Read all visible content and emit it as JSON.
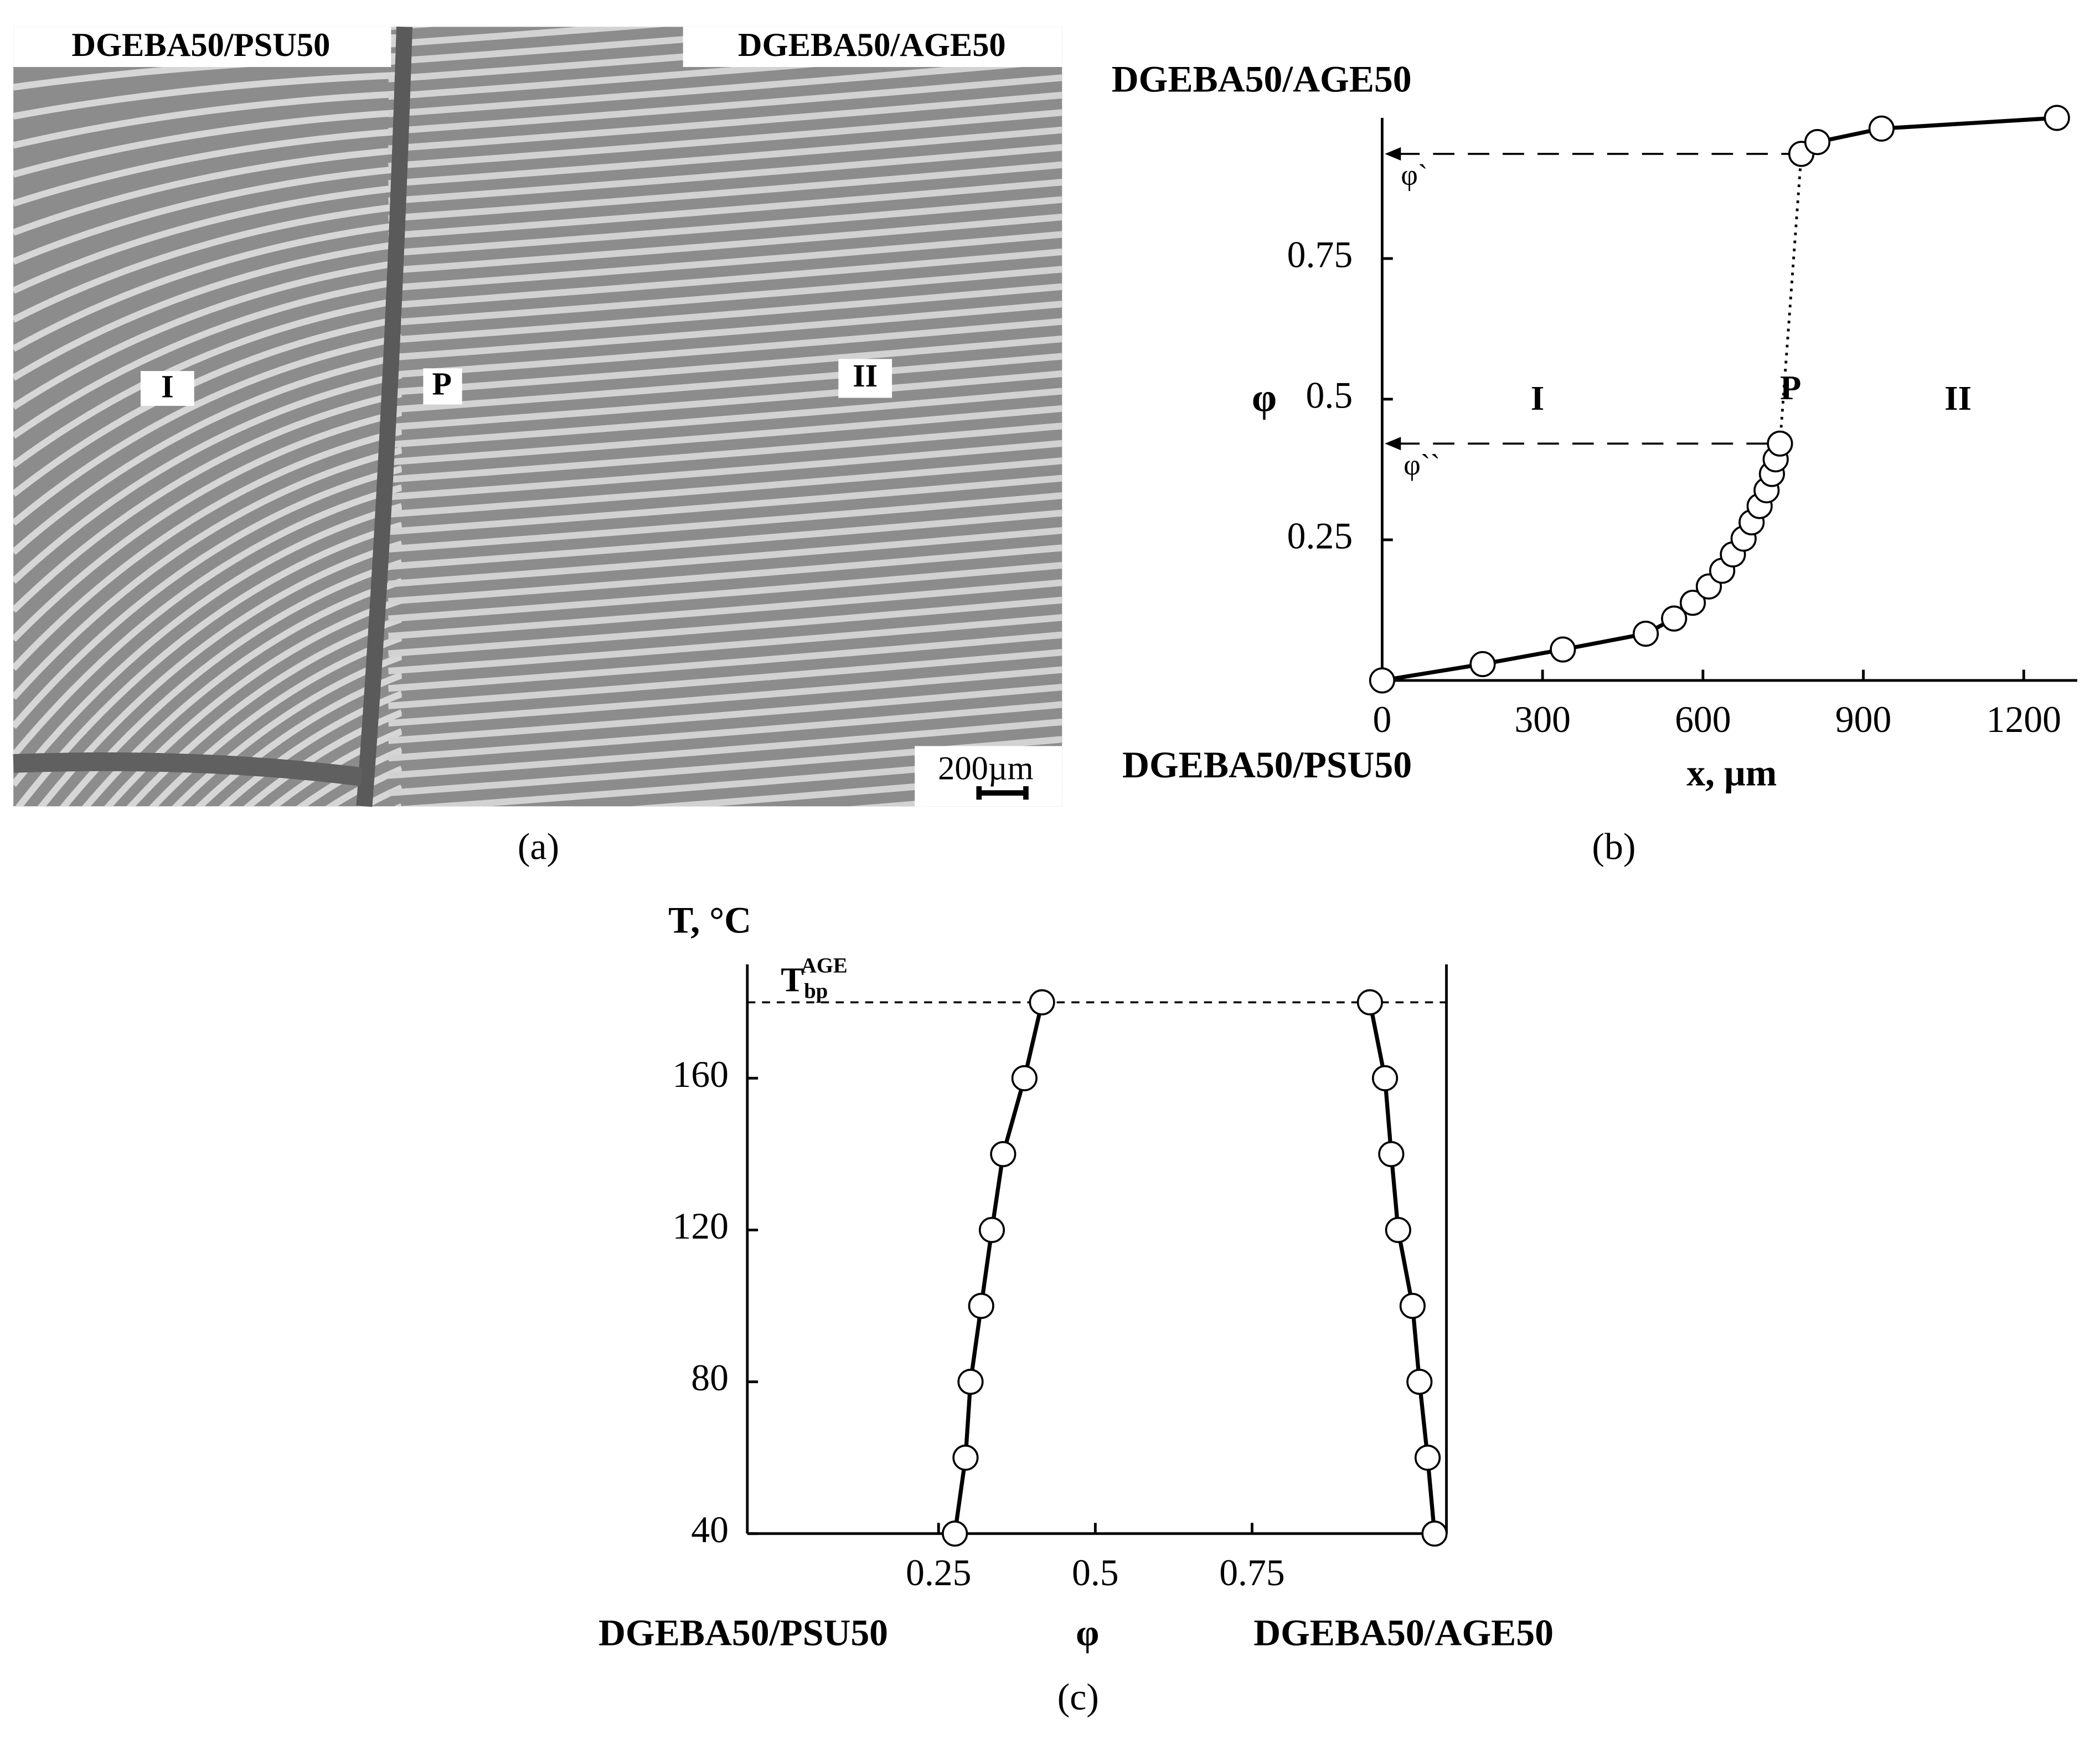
{
  "micrograph": {
    "label_left": "DGEBA50/PSU50",
    "label_right": "DGEBA50/AGE50",
    "regions": [
      "I",
      "P",
      "II"
    ],
    "scale_bar": "200µm",
    "caption": "(a)"
  },
  "chart_data": [
    {
      "type": "scatter",
      "top_label": "DGEBA50/AGE50",
      "bottom_label": "DGEBA50/PSU50",
      "ylabel": "φ",
      "xlabel": "x, µm",
      "regions": [
        "I",
        "P",
        "II"
      ],
      "level_labels": [
        "φ`",
        "φ``"
      ],
      "caption": "(b)",
      "xlim": [
        0,
        1300
      ],
      "ylim": [
        0,
        1
      ],
      "xticks": [
        0,
        300,
        600,
        900,
        1200
      ],
      "yticks": [
        0.25,
        0.5,
        0.75
      ],
      "series": [
        {
          "x": [
            0,
            188,
            338,
            493,
            546,
            581,
            611,
            636,
            656,
            676,
            691,
            706,
            719,
            729,
            736,
            744
          ],
          "values": [
            0,
            0.029,
            0.055,
            0.083,
            0.11,
            0.138,
            0.167,
            0.195,
            0.224,
            0.252,
            0.281,
            0.31,
            0.338,
            0.367,
            0.393,
            0.421
          ]
        },
        {
          "x": [
            784,
            814,
            934,
            1262
          ],
          "values": [
            0.936,
            0.957,
            0.981,
            1.0
          ]
        }
      ]
    },
    {
      "type": "scatter",
      "ylabel": "T, °C",
      "ref_label": [
        "T",
        "bp",
        "AGE"
      ],
      "xlabel": "φ",
      "left_label": "DGEBA50/PSU50",
      "right_label": "DGEBA50/AGE50",
      "caption": "(c)",
      "xlim": [
        -0.055,
        1.06
      ],
      "ylim": [
        40,
        190
      ],
      "xticks": [
        0.25,
        0.5,
        0.75
      ],
      "yticks": [
        40,
        80,
        120,
        160
      ],
      "reference_line": 180,
      "series": [
        {
          "x": [
            0.276,
            0.293,
            0.301,
            0.318,
            0.335,
            0.353,
            0.387,
            0.415
          ],
          "values": [
            40,
            60,
            80,
            100,
            120,
            140,
            160,
            180
          ]
        },
        {
          "x": [
            1.041,
            1.03,
            1.017,
            1.006,
            0.983,
            0.972,
            0.962,
            0.938
          ],
          "values": [
            40,
            60,
            80,
            100,
            120,
            140,
            160,
            180
          ]
        }
      ]
    }
  ]
}
